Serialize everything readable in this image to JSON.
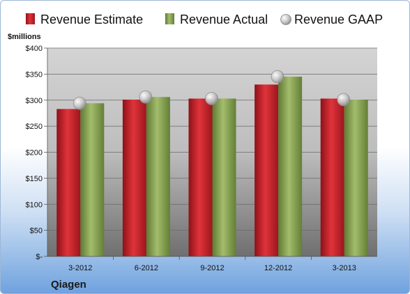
{
  "chart_data": {
    "type": "bar",
    "title": "",
    "ylabel": "$millions",
    "categories": [
      "3-2012",
      "6-2012",
      "9-2012",
      "12-2012",
      "3-2013"
    ],
    "series": [
      {
        "name": "Revenue Estimate",
        "kind": "bar",
        "color": "#c0222a",
        "values": [
          283,
          301,
          303,
          330,
          303
        ]
      },
      {
        "name": "Revenue Actual",
        "kind": "bar",
        "color": "#7f9a4a",
        "values": [
          294,
          306,
          303,
          345,
          301
        ]
      },
      {
        "name": "Revenue GAAP",
        "kind": "marker",
        "color": "#b9b9b9",
        "values": [
          294,
          306,
          303,
          345,
          301
        ]
      }
    ],
    "ylim": [
      0,
      400
    ],
    "yticks": [
      0,
      50,
      100,
      150,
      200,
      250,
      300,
      350,
      400
    ],
    "ytick_labels": [
      "$-",
      "$50",
      "$100",
      "$150",
      "$200",
      "$250",
      "$300",
      "$350",
      "$400"
    ],
    "legend_position": "top",
    "grid": true
  },
  "footer": {
    "company": "Qiagen"
  }
}
